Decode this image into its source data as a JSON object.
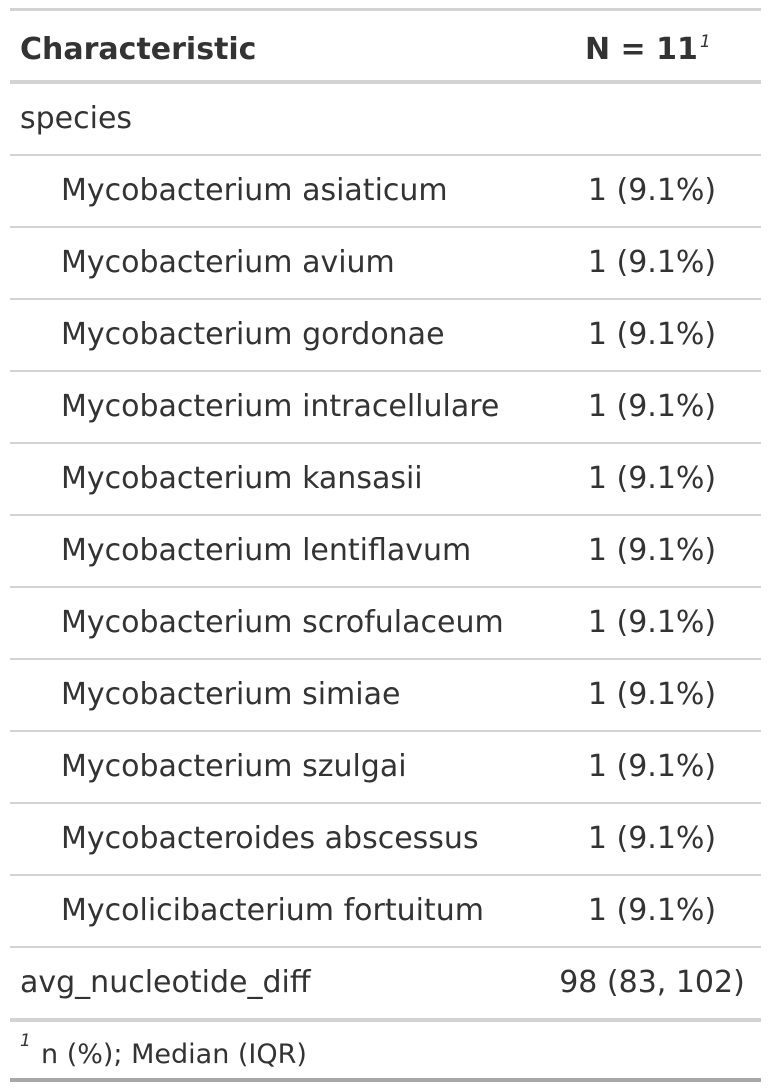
{
  "header": {
    "label": "Characteristic",
    "stat": "N = 11",
    "stat_footnote_mark": "1"
  },
  "rows": [
    {
      "label": "species",
      "stat": ""
    },
    {
      "label": "Mycobacterium asiaticum",
      "stat": "1 (9.1%)"
    },
    {
      "label": "Mycobacterium avium",
      "stat": "1 (9.1%)"
    },
    {
      "label": "Mycobacterium gordonae",
      "stat": "1 (9.1%)"
    },
    {
      "label": "Mycobacterium intracellulare",
      "stat": "1 (9.1%)"
    },
    {
      "label": "Mycobacterium kansasii",
      "stat": "1 (9.1%)"
    },
    {
      "label": "Mycobacterium lentiflavum",
      "stat": "1 (9.1%)"
    },
    {
      "label": "Mycobacterium scrofulaceum",
      "stat": "1 (9.1%)"
    },
    {
      "label": "Mycobacterium simiae",
      "stat": "1 (9.1%)"
    },
    {
      "label": "Mycobacterium szulgai",
      "stat": "1 (9.1%)"
    },
    {
      "label": "Mycobacteroides abscessus",
      "stat": "1 (9.1%)"
    },
    {
      "label": "Mycolicibacterium fortuitum",
      "stat": "1 (9.1%)"
    },
    {
      "label": "avg_nucleotide_diff",
      "stat": "98 (83, 102)"
    }
  ],
  "footnote": {
    "mark": "1",
    "text": "n (%); Median (IQR)"
  }
}
